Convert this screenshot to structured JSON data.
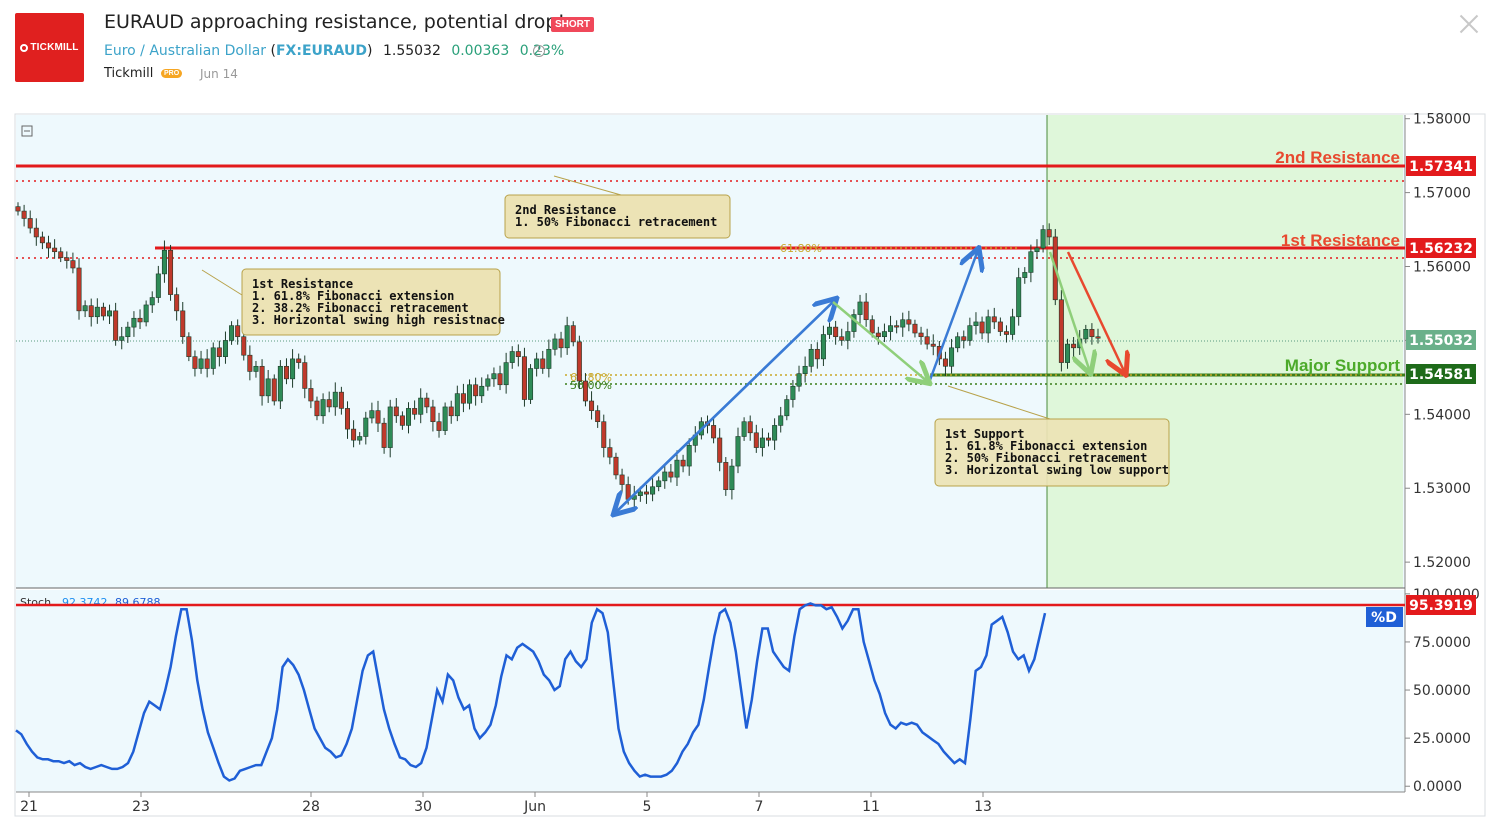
{
  "header": {
    "logo_text": "TICKMILL",
    "title": "EURAUD approaching resistance, potential drop!",
    "badge": "SHORT",
    "symbol_name": "Euro / Australian Dollar",
    "ticker": "FX:EURAUD",
    "price": "1.55032",
    "change": "0.00363",
    "change_pct": "0.23%",
    "author": "Tickmill",
    "author_badge": "PRO",
    "date": "Jun 14"
  },
  "colors": {
    "up_candle": "#2e8b57",
    "down_candle": "#c0392b",
    "resistance": "#e31a1c",
    "support": "#3a7d1a",
    "arrow_blue": "#3a7bd5",
    "arrow_green": "#8fcf7a",
    "arrow_red": "#e8492f",
    "stoch_line": "#1f5fd6",
    "panel_bg": "#eef9fd",
    "zone_bg": "#dff7da"
  },
  "chart_data": [
    {
      "type": "candlestick",
      "title": "",
      "x_ticks": [
        "21",
        "23",
        "28",
        "30",
        "Jun",
        "5",
        "7",
        "11",
        "13"
      ],
      "y_ticks": [
        "1.58000",
        "1.57000",
        "1.56000",
        "1.55000",
        "1.54000",
        "1.53000",
        "1.52000"
      ],
      "ylim": [
        1.5165,
        1.5805
      ],
      "candles_close": [
        1.5675,
        1.5665,
        1.5652,
        1.564,
        1.5632,
        1.5625,
        1.562,
        1.5612,
        1.5608,
        1.5598,
        1.554,
        1.5547,
        1.5532,
        1.5545,
        1.5533,
        1.554,
        1.55,
        1.5505,
        1.5518,
        1.553,
        1.5525,
        1.5548,
        1.5558,
        1.559,
        1.5622,
        1.5562,
        1.554,
        1.5505,
        1.5478,
        1.5462,
        1.5475,
        1.5462,
        1.549,
        1.5478,
        1.55,
        1.552,
        1.5505,
        1.548,
        1.5458,
        1.5465,
        1.5425,
        1.5448,
        1.5418,
        1.5465,
        1.5448,
        1.5475,
        1.547,
        1.5435,
        1.5418,
        1.5398,
        1.542,
        1.541,
        1.543,
        1.5408,
        1.538,
        1.5365,
        1.537,
        1.5395,
        1.5405,
        1.5388,
        1.5355,
        1.541,
        1.5398,
        1.5385,
        1.5408,
        1.54,
        1.5422,
        1.541,
        1.539,
        1.5378,
        1.541,
        1.5398,
        1.5428,
        1.5415,
        1.544,
        1.5425,
        1.5438,
        1.5448,
        1.5455,
        1.544,
        1.547,
        1.5485,
        1.5478,
        1.542,
        1.5462,
        1.5475,
        1.5462,
        1.5488,
        1.5502,
        1.549,
        1.552,
        1.5498,
        1.5445,
        1.5418,
        1.5405,
        1.539,
        1.5355,
        1.5342,
        1.5318,
        1.5305,
        1.5285,
        1.529,
        1.5295,
        1.5292,
        1.5302,
        1.531,
        1.5322,
        1.5315,
        1.5338,
        1.533,
        1.5358,
        1.5372,
        1.539,
        1.5385,
        1.5368,
        1.5335,
        1.5298,
        1.533,
        1.537,
        1.539,
        1.5375,
        1.5355,
        1.5368,
        1.5365,
        1.5385,
        1.5398,
        1.542,
        1.5438,
        1.5455,
        1.5465,
        1.5488,
        1.5475,
        1.5508,
        1.5518,
        1.5505,
        1.55,
        1.5512,
        1.5535,
        1.5552,
        1.5528,
        1.551,
        1.5505,
        1.5512,
        1.552,
        1.5518,
        1.5528,
        1.5522,
        1.551,
        1.5505,
        1.5495,
        1.5492,
        1.5475,
        1.5465,
        1.549,
        1.5505,
        1.55,
        1.552,
        1.5525,
        1.551,
        1.5532,
        1.5525,
        1.5512,
        1.5508,
        1.5532,
        1.5585,
        1.5592,
        1.562,
        1.5625,
        1.565,
        1.564,
        1.5555,
        1.547,
        1.5495,
        1.549,
        1.5502,
        1.5515,
        1.5505,
        1.5503
      ],
      "annotation_boxes": [
        {
          "lines": [
            "2nd Resistance",
            "1. 50% Fibonacci retracement"
          ]
        },
        {
          "lines": [
            "1st Resistance",
            "1. 61.8% Fibonacci extension",
            "2. 38.2% Fibonacci retracement",
            "3. Horizontal swing high resistnace"
          ]
        },
        {
          "lines": [
            "1st Support",
            "1. 61.8% Fibonacci extension",
            "2. 50% Fibonacci retracement",
            "3. Horizontal swing low support"
          ]
        }
      ],
      "fib_labels": [
        "61.80%",
        "61.80%",
        "50.00%"
      ],
      "levels": [
        {
          "name": "2nd Resistance",
          "value": "1.57341",
          "y": 1.57341
        },
        {
          "name": "1st Resistance",
          "value": "1.56232",
          "y": 1.56232
        },
        {
          "name": "Major Support",
          "value": "1.54581",
          "y": 1.54581
        }
      ],
      "current_price": {
        "value": "1.55032",
        "y": 1.55032
      }
    },
    {
      "type": "line",
      "title": "",
      "indicator_label": "Stoch",
      "indicator_values": [
        "92.3742",
        "89.6788"
      ],
      "y_ticks": [
        "100.0000",
        "75.0000",
        "50.0000",
        "25.0000",
        "0.0000"
      ],
      "ylim": [
        -3,
        102
      ],
      "level": {
        "value": "95.3919",
        "y": 95.3919
      },
      "series_badge": "%D",
      "values": [
        29,
        27,
        22,
        18,
        15,
        14,
        14,
        13,
        13,
        12,
        13,
        11,
        12,
        10,
        9,
        10,
        11,
        10,
        9,
        9,
        10,
        12,
        18,
        28,
        38,
        44,
        42,
        40,
        50,
        62,
        78,
        92,
        92,
        76,
        55,
        40,
        28,
        20,
        12,
        5,
        3,
        4,
        8,
        9,
        10,
        11,
        11,
        18,
        25,
        40,
        62,
        66,
        63,
        58,
        50,
        40,
        30,
        25,
        20,
        18,
        15,
        16,
        22,
        30,
        45,
        60,
        68,
        70,
        55,
        40,
        30,
        22,
        15,
        14,
        11,
        10,
        12,
        20,
        35,
        50,
        44,
        58,
        55,
        46,
        40,
        42,
        30,
        25,
        28,
        32,
        42,
        57,
        68,
        66,
        72,
        74,
        72,
        70,
        65,
        58,
        55,
        50,
        52,
        66,
        70,
        65,
        62,
        66,
        85,
        92,
        90,
        80,
        55,
        30,
        18,
        12,
        8,
        5,
        6,
        5,
        5,
        5,
        6,
        8,
        12,
        18,
        22,
        28,
        32,
        45,
        62,
        78,
        90,
        92,
        85,
        70,
        50,
        30,
        45,
        65,
        82,
        82,
        70,
        66,
        62,
        60,
        78,
        92,
        94,
        95,
        94,
        94,
        92,
        93,
        88,
        82,
        86,
        92,
        92,
        75,
        65,
        55,
        48,
        38,
        32,
        30,
        33,
        32,
        33,
        32,
        28,
        26,
        24,
        22,
        18,
        15,
        12,
        14,
        12,
        35,
        60,
        62,
        68,
        84,
        86,
        88,
        80,
        70,
        66,
        68,
        60,
        66,
        78,
        90
      ]
    }
  ]
}
